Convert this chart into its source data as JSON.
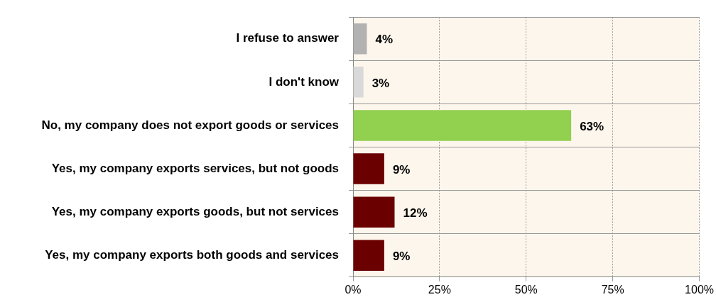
{
  "chart_data": {
    "type": "bar",
    "orientation": "horizontal",
    "categories": [
      "I refuse to answer",
      "I don't know",
      "No, my company does not export goods or services",
      "Yes, my company exports services, but not goods",
      "Yes, my company exports goods, but not services",
      "Yes, my company exports both goods and services"
    ],
    "values": [
      4,
      3,
      63,
      9,
      12,
      9
    ],
    "colors": [
      "#b2b2b2",
      "#d9d9d9",
      "#92d050",
      "#6b0000",
      "#6b0000",
      "#6b0000"
    ],
    "value_labels": [
      "4%",
      "3%",
      "63%",
      "9%",
      "12%",
      "9%"
    ],
    "xlim": [
      0,
      100
    ],
    "xticks": [
      {
        "value": 0,
        "label": "0%"
      },
      {
        "value": 25,
        "label": "25%"
      },
      {
        "value": 50,
        "label": "50%"
      },
      {
        "value": 75,
        "label": "75%"
      },
      {
        "value": 100,
        "label": "100%"
      }
    ],
    "grid": true,
    "legend": false
  }
}
